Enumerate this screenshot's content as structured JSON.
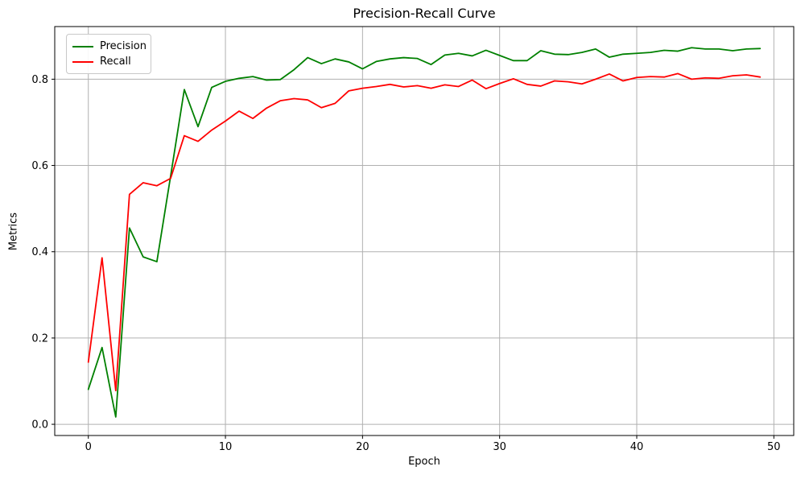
{
  "title": "Precision-Recall Curve",
  "chart_data": {
    "type": "line",
    "title": "Precision-Recall Curve",
    "xlabel": "Epoch",
    "ylabel": "Metrics",
    "x": [
      0,
      1,
      2,
      3,
      4,
      5,
      6,
      7,
      8,
      9,
      10,
      11,
      12,
      13,
      14,
      15,
      16,
      17,
      18,
      19,
      20,
      21,
      22,
      23,
      24,
      25,
      26,
      27,
      28,
      29,
      30,
      31,
      32,
      33,
      34,
      35,
      36,
      37,
      38,
      39,
      40,
      41,
      42,
      43,
      44,
      45,
      46,
      47,
      48,
      49
    ],
    "series": [
      {
        "name": "Precision",
        "color": "#008000",
        "values": [
          0.081,
          0.178,
          0.017,
          0.455,
          0.388,
          0.377,
          0.575,
          0.776,
          0.69,
          0.781,
          0.795,
          0.802,
          0.806,
          0.798,
          0.799,
          0.822,
          0.85,
          0.836,
          0.847,
          0.84,
          0.824,
          0.841,
          0.847,
          0.85,
          0.848,
          0.834,
          0.856,
          0.86,
          0.854,
          0.867,
          0.855,
          0.843,
          0.843,
          0.866,
          0.858,
          0.857,
          0.862,
          0.87,
          0.851,
          0.858,
          0.86,
          0.862,
          0.867,
          0.865,
          0.873,
          0.87,
          0.87,
          0.866,
          0.87,
          0.871
        ]
      },
      {
        "name": "Recall",
        "color": "#ff0000",
        "values": [
          0.144,
          0.386,
          0.078,
          0.533,
          0.56,
          0.553,
          0.57,
          0.669,
          0.656,
          0.682,
          0.703,
          0.726,
          0.709,
          0.733,
          0.75,
          0.755,
          0.752,
          0.734,
          0.744,
          0.773,
          0.779,
          0.783,
          0.788,
          0.782,
          0.785,
          0.779,
          0.787,
          0.783,
          0.798,
          0.778,
          0.79,
          0.801,
          0.788,
          0.784,
          0.796,
          0.794,
          0.789,
          0.8,
          0.812,
          0.796,
          0.804,
          0.806,
          0.805,
          0.813,
          0.8,
          0.803,
          0.802,
          0.808,
          0.81,
          0.805
        ]
      }
    ],
    "xlim": [
      -2.45,
      51.45
    ],
    "ylim": [
      -0.026,
      0.922
    ],
    "xticks": [
      0,
      10,
      20,
      30,
      40,
      50
    ],
    "yticks": [
      0.0,
      0.2,
      0.4,
      0.6,
      0.8
    ],
    "grid": true,
    "legend_position": "upper left"
  },
  "colors": {
    "grid": "#b0b0b0",
    "spine": "#000000",
    "tick_text": "#000000",
    "background": "#ffffff"
  }
}
